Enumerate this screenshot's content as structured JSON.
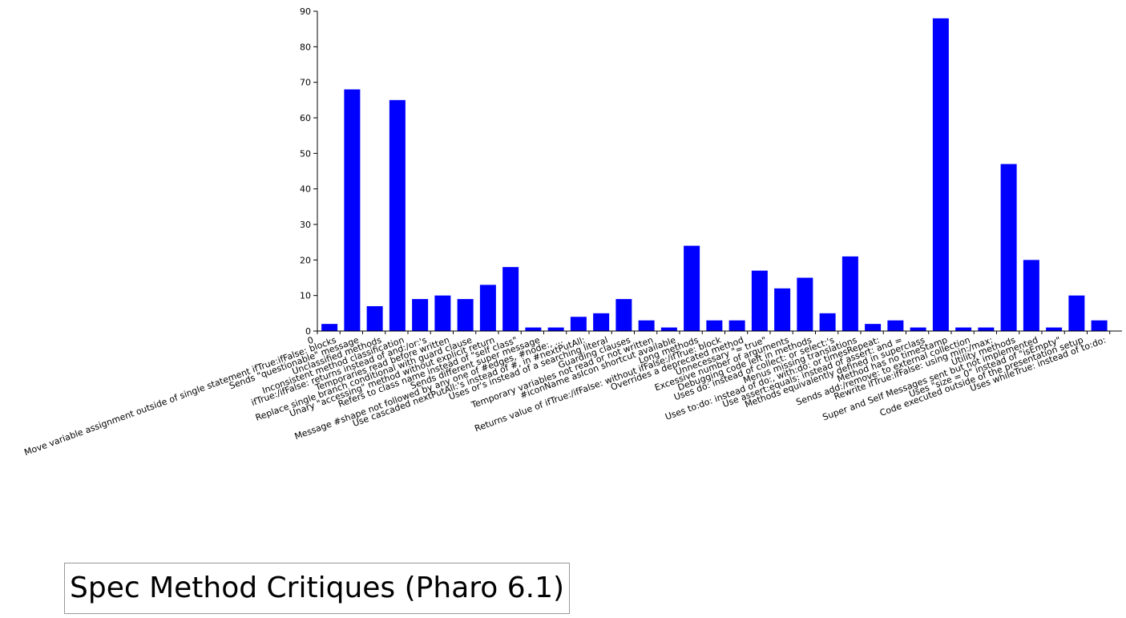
{
  "chart_data": {
    "type": "bar",
    "title": "Spec Method Critiques (Pharo 6.1)",
    "xlabel": "",
    "ylabel": "",
    "ylim": [
      0,
      90
    ],
    "yticks": [
      0,
      10,
      20,
      30,
      40,
      50,
      60,
      70,
      80,
      90
    ],
    "grid": false,
    "legend": "none",
    "bar_color": "#0000ff",
    "categories": [
      "0",
      "Move variable assignment outside of single statement ifTrue:ifFalse: blocks",
      "Sends \"questionable\" message",
      "Unclassified methods",
      "Inconsistent method classification",
      "ifTrue:/ifFalse: returns instead of and:/or:'s",
      "Temporaries read before written",
      "Replace single branch conditional with guard clause",
      "Unary \"accessing\" method without explicit return",
      "Refers to class name instead of \"self class\"",
      "Sends different super message",
      "Message #shape not followed by any one of #edges, #node:, ...",
      "Use cascaded nextPutAll:'s instead of #, in #nextPutAll:",
      "Uses or's instead of a searching literal",
      "Guarding clauses",
      "Temporary variables not read or not written",
      "#iconName asIcon shortcut available",
      "Long methods",
      "Returns value of ifTrue:/ifFalse: without ifFalse:/ifTrue: block",
      "Overrides a deprecated method",
      "Unnecessary \"= true\"",
      "Excessive number of arguments",
      "Debugging code left in methods",
      "Uses do: instead of collect: or select:'s",
      "Menus missing translations",
      "Uses to:do: instead of do:, with:do: or timesRepeat:",
      "Use assert:equals: instead of assert: and =",
      "Methods equivalently defined in superclass",
      "Method has no timeStamp",
      "Sends add:/remove: to external collection",
      "Rewrite ifTrue:ifFalse: using min:/max:",
      "Utility methods",
      "Super and Self Messages sent but not implemented",
      "Uses \"size = 0\" instead of \"isEmpty\"",
      "Code executed outside of the presentation setup",
      "Uses whileTrue: instead of to:do:"
    ],
    "values": [
      2,
      68,
      7,
      65,
      9,
      10,
      9,
      13,
      18,
      1,
      1,
      4,
      5,
      9,
      3,
      1,
      24,
      3,
      3,
      17,
      12,
      15,
      5,
      21,
      2,
      3,
      1,
      88,
      1,
      1,
      47,
      20,
      1,
      10,
      3,
      0
    ]
  }
}
